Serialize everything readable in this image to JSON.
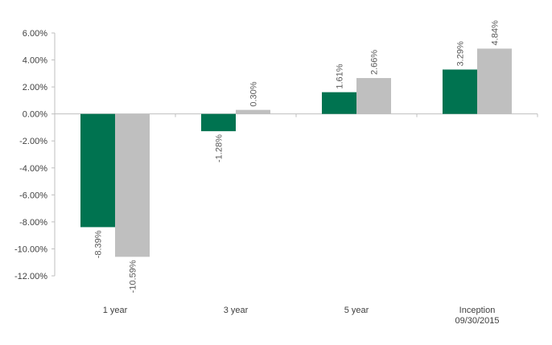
{
  "chart_data": {
    "type": "bar",
    "categories": [
      [
        "1 year"
      ],
      [
        "3 year"
      ],
      [
        "5 year"
      ],
      [
        "Inception",
        "09/30/2015"
      ]
    ],
    "series": [
      {
        "values": [
          -8.39,
          -1.28,
          1.61,
          3.29
        ],
        "labels": [
          "-8.39%",
          "-1.28%",
          "1.61%",
          "3.29%"
        ],
        "color": "#007350"
      },
      {
        "values": [
          -10.59,
          0.3,
          2.66,
          4.84
        ],
        "labels": [
          "-10.59%",
          "0.30%",
          "2.66%",
          "4.84%"
        ],
        "color": "#bfbfbf"
      }
    ],
    "ylim": [
      -12,
      6
    ],
    "yticks": [
      6,
      4,
      2,
      0,
      -2,
      -4,
      -6,
      -8,
      -10,
      -12
    ],
    "ytick_labels": [
      "6.00%",
      "4.00%",
      "2.00%",
      "0.00%",
      "-2.00%",
      "-4.00%",
      "-6.00%",
      "-8.00%",
      "-10.00%",
      "-12.00%"
    ],
    "grid": false,
    "title": "",
    "xlabel": "",
    "ylabel": ""
  }
}
